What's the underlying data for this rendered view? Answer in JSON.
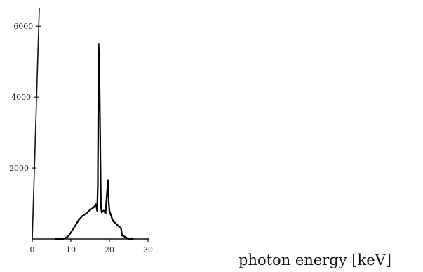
{
  "chart_data": {
    "type": "line",
    "title": "",
    "xlabel": "photon energy [keV]",
    "ylabel": "",
    "xlim": [
      0,
      30
    ],
    "ylim": [
      0,
      6500
    ],
    "x_ticks": [
      0,
      10,
      20,
      30
    ],
    "y_ticks": [
      2000,
      4000,
      6000
    ],
    "grid": false,
    "legend": "none",
    "series": [
      {
        "color": "#000000",
        "x": [
          6,
          8,
          9,
          9.5,
          10,
          11,
          12,
          13,
          14,
          15,
          16,
          16.5,
          16.8,
          17,
          17.2,
          17.4,
          17.6,
          17.8,
          18,
          18.5,
          19,
          19.3,
          19.6,
          19.8,
          20,
          20.3,
          20.6,
          21,
          22,
          22.5,
          23,
          23.3,
          24,
          25,
          26
        ],
        "y": [
          0,
          0,
          50,
          100,
          180,
          350,
          530,
          650,
          720,
          820,
          900,
          980,
          800,
          1500,
          5500,
          4700,
          2900,
          900,
          750,
          800,
          720,
          1200,
          1650,
          1050,
          800,
          700,
          600,
          500,
          400,
          350,
          300,
          100,
          60,
          0,
          0
        ]
      }
    ]
  }
}
